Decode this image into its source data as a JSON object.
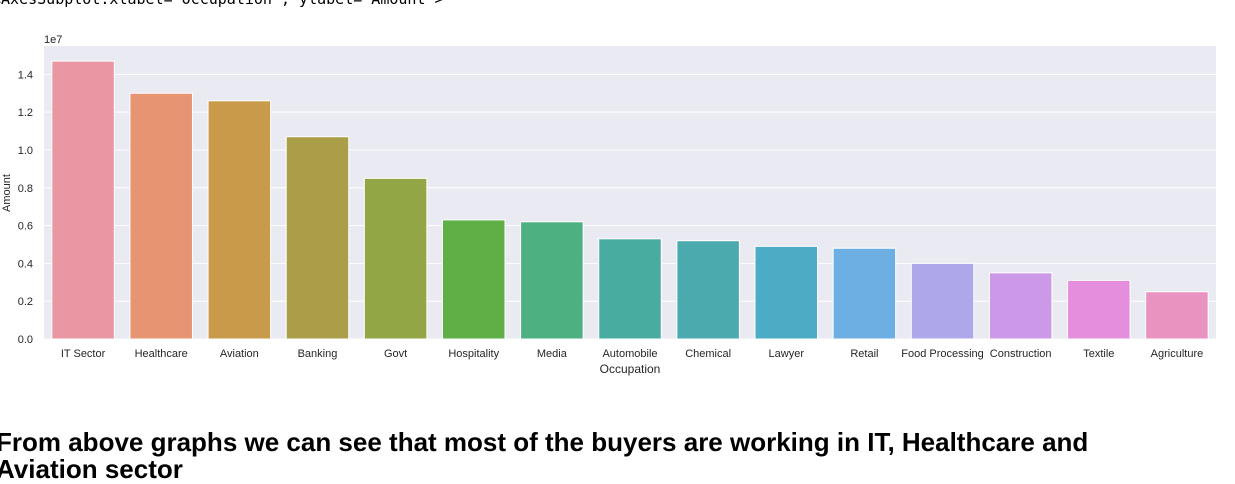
{
  "repr_text": "<AxesSubplot:xlabel='Occupation', ylabel='Amount'>",
  "chart_data": {
    "type": "bar",
    "xlabel": "Occupation",
    "ylabel": "Amount",
    "scale_note": "1e7",
    "ylim": [
      0,
      1.55
    ],
    "yticks": [
      "0.0",
      "0.2",
      "0.4",
      "0.6",
      "0.8",
      "1.0",
      "1.2",
      "1.4"
    ],
    "grid": true,
    "categories": [
      "IT Sector",
      "Healthcare",
      "Aviation",
      "Banking",
      "Govt",
      "Hospitality",
      "Media",
      "Automobile",
      "Chemical",
      "Lawyer",
      "Retail",
      "Food Processing",
      "Construction",
      "Textile",
      "Agriculture"
    ],
    "values": [
      1.47,
      1.3,
      1.26,
      1.07,
      0.85,
      0.63,
      0.62,
      0.53,
      0.52,
      0.49,
      0.48,
      0.4,
      0.35,
      0.31,
      0.25
    ],
    "colors": [
      "#ea96a3",
      "#e69472",
      "#c99a49",
      "#aa9e48",
      "#93a646",
      "#5fae46",
      "#4cb080",
      "#49aca1",
      "#4baaad",
      "#4cabc5",
      "#6daee3",
      "#aea7ea",
      "#cc99e8",
      "#e68ede",
      "#e893c0"
    ]
  },
  "conclusion": "From above graphs we can see that most of the buyers are working in IT, Healthcare and Aviation sector"
}
